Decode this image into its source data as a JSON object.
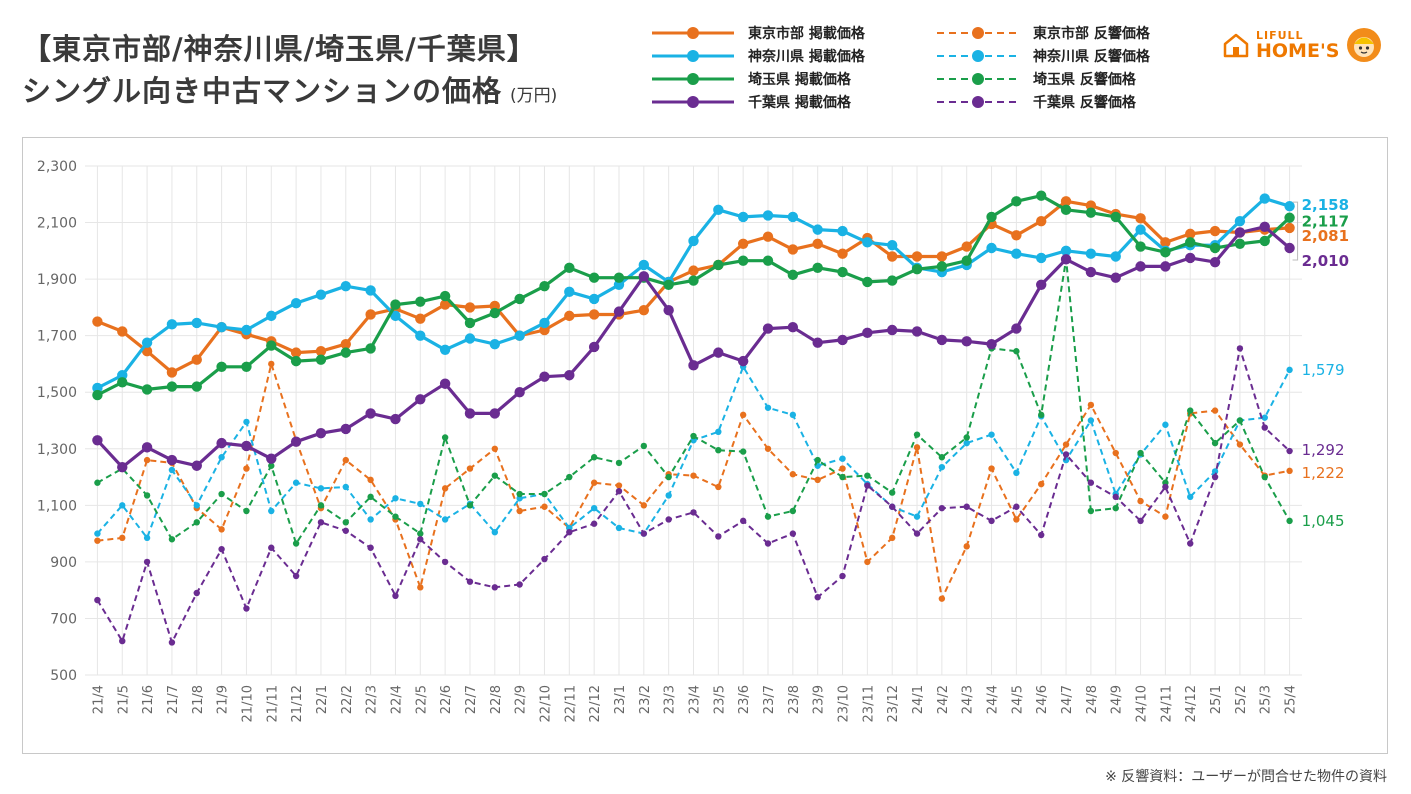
{
  "header": {
    "title_line1": "【東京市部/神奈川県/埼玉県/千葉県】",
    "title_line2": "シングル向き中古マンションの価格",
    "unit": "(万円)"
  },
  "logo": {
    "line1": "LIFULL",
    "line2": "HOME'S"
  },
  "footnote": "※ 反響資料：ユーザーが問合せた物件の資料",
  "colors": {
    "tokyo": "#e8711e",
    "kanagawa": "#1ab2e4",
    "saitama": "#1a9e4a",
    "chiba": "#6a2c91",
    "grid": "#e6e6e6",
    "brand": "#ee7800"
  },
  "legend": [
    {
      "label": "東京市部 掲載価格",
      "series": "tokyo",
      "dashed": false
    },
    {
      "label": "神奈川県 掲載価格",
      "series": "kanagawa",
      "dashed": false
    },
    {
      "label": "埼玉県 掲載価格",
      "series": "saitama",
      "dashed": false
    },
    {
      "label": "千葉県 掲載価格",
      "series": "chiba",
      "dashed": false
    },
    {
      "label": "東京市部 反響価格",
      "series": "tokyo",
      "dashed": true
    },
    {
      "label": "神奈川県 反響価格",
      "series": "kanagawa",
      "dashed": true
    },
    {
      "label": "埼玉県 反響価格",
      "series": "saitama",
      "dashed": true
    },
    {
      "label": "千葉県 反響価格",
      "series": "chiba",
      "dashed": true
    }
  ],
  "chart_data": {
    "type": "line",
    "title": "【東京市部/神奈川県/埼玉県/千葉県】シングル向き中古マンションの価格",
    "ylabel": "(万円)",
    "ylim": [
      500,
      2300
    ],
    "yticks": [
      500,
      700,
      900,
      1100,
      1300,
      1500,
      1700,
      1900,
      2100,
      2300
    ],
    "ytick_labels": [
      "500",
      "700",
      "900",
      "1,100",
      "1,300",
      "1,500",
      "1,700",
      "1,900",
      "2,100",
      "2,300"
    ],
    "grid": true,
    "categories": [
      "21/4",
      "21/5",
      "21/6",
      "21/7",
      "21/8",
      "21/9",
      "21/10",
      "21/11",
      "21/12",
      "22/1",
      "22/2",
      "22/3",
      "22/4",
      "22/5",
      "22/6",
      "22/7",
      "22/8",
      "22/9",
      "22/10",
      "22/11",
      "22/12",
      "23/1",
      "23/2",
      "23/3",
      "23/4",
      "23/5",
      "23/6",
      "23/7",
      "23/8",
      "23/9",
      "23/10",
      "23/11",
      "23/12",
      "24/1",
      "24/2",
      "24/3",
      "24/4",
      "24/5",
      "24/6",
      "24/7",
      "24/8",
      "24/9",
      "24/10",
      "24/11",
      "24/12",
      "25/1",
      "25/2",
      "25/3",
      "25/4"
    ],
    "series": [
      {
        "name": "東京市部 掲載価格",
        "color_key": "tokyo",
        "dashed": false,
        "end_label": "2,081",
        "values": [
          1750,
          1715,
          1645,
          1570,
          1615,
          1730,
          1705,
          1680,
          1640,
          1645,
          1670,
          1775,
          1795,
          1760,
          1810,
          1800,
          1805,
          1700,
          1720,
          1770,
          1775,
          1775,
          1790,
          1890,
          1930,
          1950,
          2025,
          2050,
          2005,
          2025,
          1990,
          2045,
          1980,
          1980,
          1980,
          2015,
          2095,
          2055,
          2105,
          2175,
          2160,
          2130,
          2115,
          2030,
          2060,
          2070,
          2065,
          2075,
          2081
        ]
      },
      {
        "name": "神奈川県 掲載価格",
        "color_key": "kanagawa",
        "dashed": false,
        "end_label": "2,158",
        "values": [
          1515,
          1560,
          1675,
          1740,
          1745,
          1730,
          1720,
          1770,
          1815,
          1845,
          1875,
          1860,
          1770,
          1700,
          1650,
          1690,
          1670,
          1700,
          1745,
          1855,
          1830,
          1880,
          1950,
          1890,
          2035,
          2145,
          2120,
          2125,
          2120,
          2075,
          2070,
          2030,
          2020,
          1940,
          1925,
          1950,
          2010,
          1990,
          1975,
          2000,
          1990,
          1980,
          2075,
          2000,
          2020,
          2020,
          2105,
          2185,
          2158
        ]
      },
      {
        "name": "埼玉県 掲載価格",
        "color_key": "saitama",
        "dashed": false,
        "end_label": "2,117",
        "values": [
          1490,
          1535,
          1510,
          1520,
          1520,
          1590,
          1590,
          1665,
          1610,
          1615,
          1640,
          1655,
          1810,
          1820,
          1840,
          1745,
          1780,
          1830,
          1875,
          1940,
          1905,
          1905,
          1905,
          1880,
          1895,
          1950,
          1965,
          1965,
          1915,
          1940,
          1925,
          1890,
          1895,
          1935,
          1945,
          1965,
          2120,
          2175,
          2195,
          2145,
          2135,
          2120,
          2015,
          1995,
          2030,
          2010,
          2025,
          2035,
          2117
        ]
      },
      {
        "name": "千葉県 掲載価格",
        "color_key": "chiba",
        "dashed": false,
        "end_label": "2,010",
        "values": [
          1330,
          1235,
          1305,
          1260,
          1240,
          1320,
          1310,
          1265,
          1325,
          1355,
          1370,
          1425,
          1405,
          1475,
          1530,
          1425,
          1425,
          1500,
          1555,
          1560,
          1660,
          1785,
          1910,
          1790,
          1595,
          1640,
          1610,
          1725,
          1730,
          1675,
          1685,
          1710,
          1720,
          1715,
          1685,
          1680,
          1670,
          1725,
          1880,
          1970,
          1925,
          1905,
          1945,
          1945,
          1975,
          1960,
          2065,
          2085,
          2010
        ]
      },
      {
        "name": "東京市部 反響価格",
        "color_key": "tokyo",
        "dashed": true,
        "end_label": "1,222",
        "values": [
          975,
          985,
          1260,
          1250,
          1090,
          1015,
          1230,
          1600,
          1330,
          1090,
          1260,
          1190,
          1050,
          810,
          1160,
          1230,
          1300,
          1080,
          1095,
          1020,
          1180,
          1170,
          1100,
          1210,
          1205,
          1165,
          1420,
          1300,
          1210,
          1190,
          1230,
          900,
          985,
          1305,
          770,
          955,
          1230,
          1050,
          1175,
          1315,
          1455,
          1285,
          1115,
          1060,
          1425,
          1435,
          1315,
          1205,
          1222
        ]
      },
      {
        "name": "神奈川県 反響価格",
        "color_key": "kanagawa",
        "dashed": true,
        "end_label": "1,579",
        "values": [
          1000,
          1100,
          985,
          1225,
          1100,
          1270,
          1395,
          1080,
          1180,
          1160,
          1165,
          1050,
          1125,
          1105,
          1050,
          1105,
          1005,
          1125,
          1140,
          1020,
          1090,
          1020,
          1000,
          1135,
          1330,
          1360,
          1590,
          1445,
          1420,
          1240,
          1265,
          1175,
          1095,
          1060,
          1235,
          1320,
          1350,
          1215,
          1415,
          1260,
          1400,
          1140,
          1280,
          1385,
          1130,
          1220,
          1400,
          1410,
          1579
        ]
      },
      {
        "name": "埼玉県 反響価格",
        "color_key": "saitama",
        "dashed": true,
        "end_label": "1,045",
        "values": [
          1180,
          1230,
          1135,
          980,
          1040,
          1140,
          1080,
          1240,
          965,
          1100,
          1040,
          1130,
          1060,
          1000,
          1340,
          1100,
          1205,
          1140,
          1140,
          1200,
          1270,
          1250,
          1310,
          1200,
          1345,
          1295,
          1290,
          1060,
          1080,
          1260,
          1200,
          1205,
          1145,
          1350,
          1270,
          1340,
          1655,
          1645,
          1420,
          1970,
          1080,
          1090,
          1285,
          1180,
          1435,
          1320,
          1400,
          1200,
          1045
        ]
      },
      {
        "name": "千葉県 反響価格",
        "color_key": "chiba",
        "dashed": true,
        "end_label": "1,292",
        "values": [
          765,
          620,
          900,
          615,
          790,
          945,
          735,
          950,
          850,
          1040,
          1010,
          950,
          780,
          980,
          900,
          830,
          810,
          820,
          910,
          1005,
          1035,
          1150,
          1000,
          1050,
          1075,
          990,
          1045,
          965,
          1000,
          775,
          850,
          1170,
          1095,
          1000,
          1090,
          1095,
          1045,
          1095,
          995,
          1280,
          1180,
          1130,
          1045,
          1165,
          965,
          1200,
          1655,
          1375,
          1292
        ]
      }
    ]
  }
}
